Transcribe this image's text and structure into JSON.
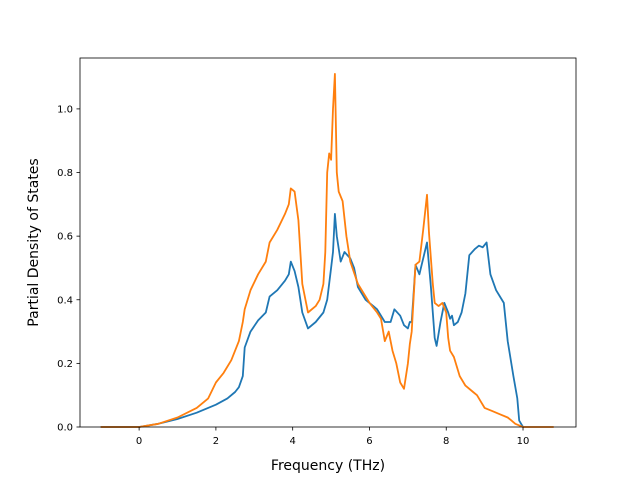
{
  "chart_data": {
    "type": "line",
    "title": "",
    "xlabel": "Frequency (THz)",
    "ylabel": "Partial Density of States",
    "xlim": [
      -1.54,
      11.38
    ],
    "ylim": [
      0.0,
      1.16
    ],
    "xticks": [
      0,
      2,
      4,
      6,
      8,
      10
    ],
    "xtick_labels": [
      "0",
      "2",
      "4",
      "6",
      "8",
      "10"
    ],
    "yticks": [
      0.0,
      0.2,
      0.4,
      0.6,
      0.8,
      1.0
    ],
    "ytick_labels": [
      "0.0",
      "0.2",
      "0.4",
      "0.6",
      "0.8",
      "1.0"
    ],
    "grid": false,
    "legend": "none",
    "series": [
      {
        "color": "#1f77b4",
        "x": [
          -1.0,
          0.0,
          0.5,
          1.0,
          1.5,
          2.0,
          2.3,
          2.5,
          2.6,
          2.7,
          2.75,
          2.9,
          3.1,
          3.3,
          3.4,
          3.6,
          3.8,
          3.9,
          3.95,
          4.05,
          4.15,
          4.25,
          4.4,
          4.6,
          4.8,
          4.9,
          5.0,
          5.05,
          5.1,
          5.15,
          5.25,
          5.35,
          5.5,
          5.6,
          5.7,
          5.9,
          6.1,
          6.2,
          6.3,
          6.4,
          6.55,
          6.65,
          6.8,
          6.9,
          7.0,
          7.05,
          7.1,
          7.2,
          7.3,
          7.4,
          7.5,
          7.6,
          7.7,
          7.75,
          7.85,
          7.95,
          8.05,
          8.1,
          8.15,
          8.2,
          8.3,
          8.4,
          8.5,
          8.6,
          8.75,
          8.85,
          8.95,
          9.05,
          9.15,
          9.3,
          9.4,
          9.5,
          9.6,
          9.75,
          9.85,
          9.9,
          10.0
        ],
        "y": [
          0.0,
          0.0,
          0.01,
          0.025,
          0.045,
          0.07,
          0.09,
          0.11,
          0.125,
          0.16,
          0.25,
          0.3,
          0.335,
          0.36,
          0.41,
          0.43,
          0.46,
          0.48,
          0.52,
          0.49,
          0.44,
          0.36,
          0.31,
          0.33,
          0.36,
          0.4,
          0.5,
          0.55,
          0.67,
          0.6,
          0.52,
          0.55,
          0.53,
          0.5,
          0.44,
          0.4,
          0.38,
          0.37,
          0.35,
          0.33,
          0.33,
          0.37,
          0.35,
          0.32,
          0.31,
          0.33,
          0.33,
          0.51,
          0.48,
          0.53,
          0.58,
          0.44,
          0.28,
          0.255,
          0.33,
          0.39,
          0.36,
          0.34,
          0.35,
          0.32,
          0.33,
          0.36,
          0.42,
          0.54,
          0.56,
          0.57,
          0.565,
          0.58,
          0.48,
          0.43,
          0.41,
          0.39,
          0.27,
          0.16,
          0.09,
          0.02,
          0.0
        ]
      },
      {
        "color": "#ff7f0e",
        "x": [
          -1.0,
          0.0,
          0.5,
          1.0,
          1.5,
          1.8,
          2.0,
          2.2,
          2.4,
          2.6,
          2.7,
          2.75,
          2.9,
          3.1,
          3.3,
          3.4,
          3.6,
          3.8,
          3.9,
          3.95,
          4.05,
          4.15,
          4.25,
          4.4,
          4.6,
          4.7,
          4.8,
          4.85,
          4.9,
          4.95,
          5.0,
          5.05,
          5.1,
          5.15,
          5.2,
          5.3,
          5.4,
          5.5,
          5.7,
          6.0,
          6.2,
          6.3,
          6.4,
          6.5,
          6.6,
          6.7,
          6.8,
          6.9,
          7.0,
          7.05,
          7.1,
          7.2,
          7.3,
          7.4,
          7.5,
          7.55,
          7.65,
          7.7,
          7.8,
          7.9,
          8.0,
          8.05,
          8.1,
          8.2,
          8.35,
          8.5,
          8.7,
          8.8,
          8.9,
          9.0,
          9.2,
          9.4,
          9.6,
          9.7,
          9.8,
          9.9,
          10.0,
          10.8
        ],
        "y": [
          0.0,
          0.0,
          0.01,
          0.03,
          0.06,
          0.09,
          0.14,
          0.17,
          0.21,
          0.27,
          0.33,
          0.37,
          0.43,
          0.48,
          0.52,
          0.58,
          0.62,
          0.67,
          0.7,
          0.75,
          0.74,
          0.65,
          0.45,
          0.36,
          0.38,
          0.4,
          0.45,
          0.55,
          0.8,
          0.86,
          0.84,
          1.0,
          1.11,
          0.8,
          0.74,
          0.71,
          0.6,
          0.52,
          0.45,
          0.39,
          0.36,
          0.34,
          0.27,
          0.3,
          0.24,
          0.2,
          0.14,
          0.12,
          0.2,
          0.26,
          0.3,
          0.51,
          0.52,
          0.62,
          0.73,
          0.61,
          0.45,
          0.39,
          0.38,
          0.39,
          0.36,
          0.28,
          0.24,
          0.22,
          0.16,
          0.13,
          0.11,
          0.1,
          0.08,
          0.06,
          0.05,
          0.04,
          0.03,
          0.02,
          0.01,
          0.005,
          0.0,
          0.0
        ]
      }
    ]
  }
}
